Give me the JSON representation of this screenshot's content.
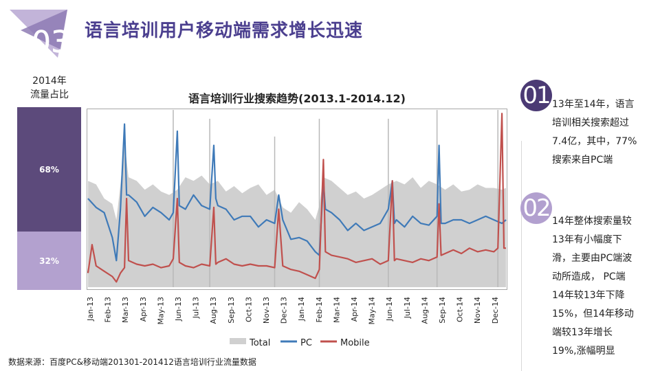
{
  "header": {
    "title": "语言培训用户移动端需求增长迅速",
    "badge_number": "03"
  },
  "share": {
    "label_lines": [
      "2014年",
      "流量占比"
    ],
    "segments": [
      {
        "value": "68%",
        "fraction": 0.68,
        "color": "#5c4a7b"
      },
      {
        "value": "32%",
        "fraction": 0.32,
        "color": "#b3a1cf"
      }
    ]
  },
  "notes": [
    {
      "number": "01",
      "lines": [
        "13年至14年，语言",
        "培训相关搜索超过",
        "7.4亿，其中，77%",
        "搜索来自PC端"
      ]
    },
    {
      "number": "02",
      "lines": [
        " 14年整体搜索量较",
        "13年有小幅度下",
        "滑，主要由PC端波",
        "动所造成，  PC端",
        "14年较13年下降",
        "15%，但14年移动",
        "端较13年增长",
        "19%,涨幅明显"
      ]
    }
  ],
  "source": "数据来源：百度PC&移动端201301-201412语言培训行业流量数据",
  "colors": {
    "accent": "#4b3f8f",
    "total": "#d0d0d0",
    "pc": "#3f7ab8",
    "mobile": "#c0504d",
    "spike": "#b8b8b8"
  },
  "chart_data": {
    "type": "area",
    "title": "语言培训行业搜索趋势(2013.1-2014.12)",
    "x_labels": [
      "Jan-13",
      "Feb-13",
      "Mar-13",
      "Apr-13",
      "May-13",
      "Jun-13",
      "Jul-13",
      "Aug-13",
      "Sep-13",
      "Oct-13",
      "Nov-13",
      "Dec-13",
      "Jan-14",
      "Feb-14",
      "Mar-14",
      "Apr-14",
      "May-14",
      "Jun-14",
      "Jul-14",
      "Aug-14",
      "Sep-14",
      "Oct-14",
      "Nov-14",
      "Dec-14"
    ],
    "ylim": [
      0,
      100
    ],
    "grid": false,
    "legend": "bottom",
    "week_index": "weeks from Jan-13 (4.33 weeks per month)",
    "series": [
      {
        "name": "Total",
        "style": "area",
        "points": [
          [
            0,
            60
          ],
          [
            2,
            58
          ],
          [
            4,
            50
          ],
          [
            6,
            47
          ],
          [
            7,
            38
          ],
          [
            8,
            58
          ],
          [
            9,
            82
          ],
          [
            10,
            62
          ],
          [
            12,
            60
          ],
          [
            14,
            55
          ],
          [
            16,
            58
          ],
          [
            18,
            54
          ],
          [
            20,
            52
          ],
          [
            22,
            55
          ],
          [
            24,
            62
          ],
          [
            26,
            60
          ],
          [
            28,
            63
          ],
          [
            30,
            58
          ],
          [
            32,
            60
          ],
          [
            34,
            54
          ],
          [
            36,
            57
          ],
          [
            38,
            53
          ],
          [
            40,
            56
          ],
          [
            42,
            58
          ],
          [
            44,
            52
          ],
          [
            46,
            55
          ],
          [
            48,
            45
          ],
          [
            50,
            42
          ],
          [
            52,
            48
          ],
          [
            54,
            44
          ],
          [
            56,
            38
          ],
          [
            57,
            46
          ],
          [
            58,
            62
          ],
          [
            60,
            60
          ],
          [
            62,
            56
          ],
          [
            64,
            52
          ],
          [
            66,
            54
          ],
          [
            68,
            50
          ],
          [
            70,
            52
          ],
          [
            72,
            55
          ],
          [
            74,
            58
          ],
          [
            76,
            60
          ],
          [
            78,
            58
          ],
          [
            80,
            62
          ],
          [
            82,
            56
          ],
          [
            84,
            60
          ],
          [
            86,
            58
          ],
          [
            88,
            55
          ],
          [
            90,
            58
          ],
          [
            92,
            54
          ],
          [
            94,
            55
          ],
          [
            96,
            58
          ],
          [
            98,
            56
          ],
          [
            100,
            56
          ],
          [
            102,
            55
          ],
          [
            103,
            56
          ]
        ]
      },
      {
        "name": "PC",
        "style": "line",
        "points": [
          [
            0,
            50
          ],
          [
            2,
            45
          ],
          [
            4,
            42
          ],
          [
            6,
            28
          ],
          [
            7,
            15
          ],
          [
            8,
            44
          ],
          [
            9,
            92
          ],
          [
            9.5,
            52
          ],
          [
            10,
            52
          ],
          [
            12,
            48
          ],
          [
            14,
            40
          ],
          [
            16,
            45
          ],
          [
            18,
            42
          ],
          [
            20,
            38
          ],
          [
            21,
            42
          ],
          [
            22,
            88
          ],
          [
            22.5,
            46
          ],
          [
            24,
            44
          ],
          [
            26,
            52
          ],
          [
            28,
            46
          ],
          [
            30,
            44
          ],
          [
            31,
            80
          ],
          [
            31.5,
            50
          ],
          [
            32,
            46
          ],
          [
            34,
            44
          ],
          [
            36,
            38
          ],
          [
            38,
            40
          ],
          [
            40,
            40
          ],
          [
            42,
            34
          ],
          [
            44,
            38
          ],
          [
            46,
            36
          ],
          [
            47,
            52
          ],
          [
            48,
            38
          ],
          [
            50,
            27
          ],
          [
            52,
            28
          ],
          [
            54,
            26
          ],
          [
            56,
            20
          ],
          [
            57,
            18
          ],
          [
            58,
            60
          ],
          [
            58.5,
            44
          ],
          [
            60,
            42
          ],
          [
            62,
            38
          ],
          [
            64,
            32
          ],
          [
            66,
            36
          ],
          [
            68,
            32
          ],
          [
            70,
            34
          ],
          [
            72,
            36
          ],
          [
            74,
            44
          ],
          [
            75,
            60
          ],
          [
            75.5,
            36
          ],
          [
            76,
            38
          ],
          [
            78,
            34
          ],
          [
            80,
            40
          ],
          [
            82,
            36
          ],
          [
            84,
            35
          ],
          [
            86,
            40
          ],
          [
            86.5,
            80
          ],
          [
            87,
            36
          ],
          [
            88,
            36
          ],
          [
            90,
            38
          ],
          [
            92,
            38
          ],
          [
            94,
            36
          ],
          [
            96,
            38
          ],
          [
            98,
            40
          ],
          [
            100,
            38
          ],
          [
            102,
            36
          ],
          [
            103,
            38
          ]
        ]
      },
      {
        "name": "Mobile",
        "style": "line",
        "points": [
          [
            0,
            8
          ],
          [
            1,
            24
          ],
          [
            2,
            12
          ],
          [
            4,
            9
          ],
          [
            6,
            6
          ],
          [
            7,
            3
          ],
          [
            8,
            8
          ],
          [
            9,
            11
          ],
          [
            9.5,
            50
          ],
          [
            10,
            15
          ],
          [
            12,
            13
          ],
          [
            14,
            12
          ],
          [
            16,
            13
          ],
          [
            18,
            11
          ],
          [
            20,
            12
          ],
          [
            21,
            16
          ],
          [
            22,
            50
          ],
          [
            22.5,
            14
          ],
          [
            24,
            12
          ],
          [
            26,
            11
          ],
          [
            28,
            13
          ],
          [
            30,
            12
          ],
          [
            31,
            45
          ],
          [
            31.5,
            13
          ],
          [
            32,
            14
          ],
          [
            34,
            16
          ],
          [
            36,
            13
          ],
          [
            38,
            12
          ],
          [
            40,
            13
          ],
          [
            42,
            12
          ],
          [
            44,
            12
          ],
          [
            46,
            11
          ],
          [
            47,
            44
          ],
          [
            48,
            12
          ],
          [
            50,
            10
          ],
          [
            52,
            9
          ],
          [
            54,
            7
          ],
          [
            56,
            5
          ],
          [
            57,
            10
          ],
          [
            58,
            72
          ],
          [
            58.5,
            20
          ],
          [
            60,
            18
          ],
          [
            62,
            17
          ],
          [
            64,
            16
          ],
          [
            66,
            14
          ],
          [
            68,
            15
          ],
          [
            70,
            16
          ],
          [
            72,
            13
          ],
          [
            74,
            15
          ],
          [
            75,
            60
          ],
          [
            75.5,
            15
          ],
          [
            76,
            16
          ],
          [
            78,
            15
          ],
          [
            80,
            14
          ],
          [
            82,
            16
          ],
          [
            84,
            15
          ],
          [
            86,
            17
          ],
          [
            86.5,
            47
          ],
          [
            87,
            18
          ],
          [
            88,
            19
          ],
          [
            90,
            21
          ],
          [
            92,
            19
          ],
          [
            94,
            22
          ],
          [
            96,
            20
          ],
          [
            98,
            21
          ],
          [
            100,
            20
          ],
          [
            101,
            22
          ],
          [
            102,
            98
          ],
          [
            102.5,
            22
          ],
          [
            103,
            22
          ]
        ]
      }
    ],
    "spikes": [
      [
        21,
        100
      ],
      [
        30,
        95
      ],
      [
        46,
        85
      ],
      [
        57,
        95
      ],
      [
        74,
        95
      ],
      [
        86,
        100
      ],
      [
        101,
        100
      ]
    ]
  }
}
